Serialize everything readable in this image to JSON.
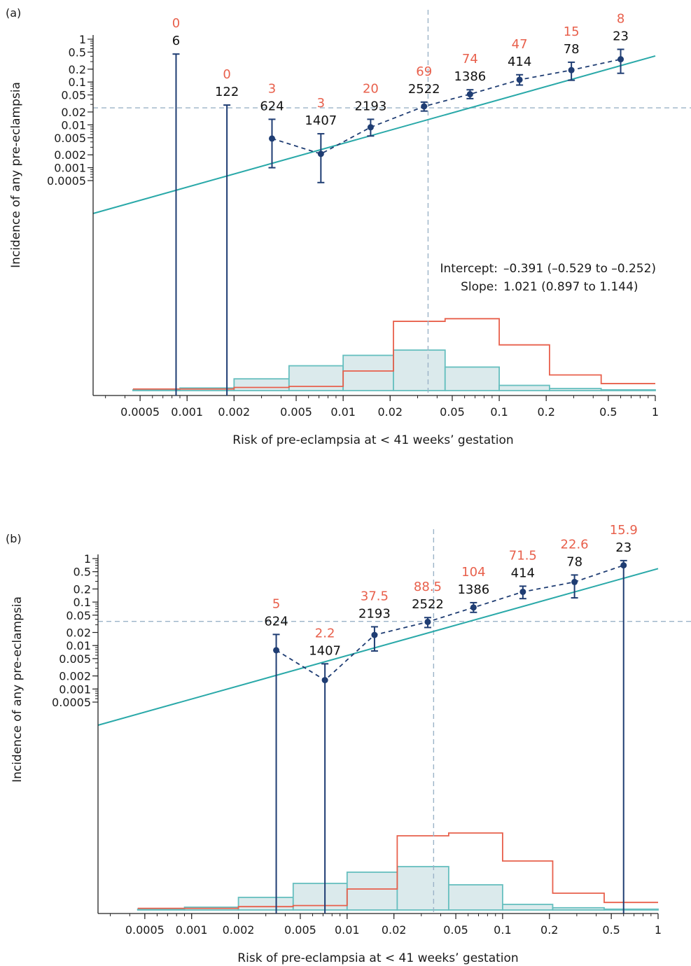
{
  "colors": {
    "calibration_line": "#2aa9a9",
    "observed": "#1f3d73",
    "events_label": "#e8604c",
    "hist_cases": "#e8604c",
    "hist_noncases_stroke": "#66bfbf",
    "hist_noncases_fill": "#dbeaec",
    "reference_line": "#9bb3c7",
    "axis": "#222222"
  },
  "chart_data": [
    {
      "panel_label": "(a)",
      "type": "scatter",
      "xlabel": "Risk of pre-eclampsia at < 41 weeks’ gestation",
      "ylabel": "Incidence of any pre-eclampsia",
      "x_scale": "log",
      "y_scale": "log",
      "xlim": [
        0.00025,
        1
      ],
      "x_ticks": [
        0.0005,
        0.001,
        0.002,
        0.005,
        0.01,
        0.02,
        0.05,
        0.1,
        0.2,
        0.5,
        1
      ],
      "x_tick_labels": [
        "0.0005",
        "0.001",
        "0.002",
        "0.005",
        "0.01",
        "0.02",
        "0.05",
        "0.1",
        "0.2",
        "0.5",
        "1"
      ],
      "y_ticks": [
        0.0005,
        0.001,
        0.002,
        0.005,
        0.01,
        0.02,
        0.05,
        0.1,
        0.2,
        0.5,
        1
      ],
      "y_tick_labels": [
        "0.0005",
        "0.001",
        "0.002",
        "0.005",
        "0.01",
        "0.02",
        "0.05",
        "0.1",
        "0.2",
        "0.5",
        "1"
      ],
      "reference_x": 0.035,
      "reference_y": 0.025,
      "calibration_line": {
        "intercept_log10": -0.391,
        "slope": 1.021
      },
      "groups": [
        {
          "x": 0.00085,
          "y": null,
          "lower": null,
          "upper": 0.45,
          "n": "6",
          "events": "0"
        },
        {
          "x": 0.0018,
          "y": null,
          "lower": null,
          "upper": 0.029,
          "n": "122",
          "events": "0"
        },
        {
          "x": 0.0035,
          "y": 0.0048,
          "lower": 0.001,
          "upper": 0.0135,
          "n": "624",
          "events": "3"
        },
        {
          "x": 0.0072,
          "y": 0.0021,
          "lower": 0.00045,
          "upper": 0.0062,
          "n": "1407",
          "events": "3"
        },
        {
          "x": 0.015,
          "y": 0.0088,
          "lower": 0.0055,
          "upper": 0.0135,
          "n": "2193",
          "events": "20"
        },
        {
          "x": 0.033,
          "y": 0.027,
          "lower": 0.021,
          "upper": 0.034,
          "n": "2522",
          "events": "69"
        },
        {
          "x": 0.065,
          "y": 0.052,
          "lower": 0.041,
          "upper": 0.066,
          "n": "1386",
          "events": "74"
        },
        {
          "x": 0.135,
          "y": 0.113,
          "lower": 0.085,
          "upper": 0.148,
          "n": "414",
          "events": "47"
        },
        {
          "x": 0.29,
          "y": 0.19,
          "lower": 0.11,
          "upper": 0.29,
          "n": "78",
          "events": "15"
        },
        {
          "x": 0.6,
          "y": 0.34,
          "lower": 0.16,
          "upper": 0.58,
          "n": "23",
          "events": "8"
        }
      ],
      "histogram_bins": [
        0.00045,
        0.0009,
        0.002,
        0.0045,
        0.01,
        0.021,
        0.045,
        0.1,
        0.21,
        0.45,
        1
      ],
      "histogram_noncases": [
        0.003,
        0.01,
        0.045,
        0.095,
        0.135,
        0.155,
        0.09,
        0.02,
        0.008,
        0.003
      ],
      "histogram_cases": [
        0.006,
        0.006,
        0.012,
        0.016,
        0.075,
        0.265,
        0.275,
        0.175,
        0.06,
        0.027
      ],
      "annotations": {
        "intercept_label": "Intercept:",
        "intercept_value": "–0.391 (–0.529 to –0.252)",
        "slope_label": "Slope:",
        "slope_value": "1.021 (0.897 to 1.144)"
      }
    },
    {
      "panel_label": "(b)",
      "type": "scatter",
      "xlabel": "Risk of pre-eclampsia at < 41 weeks’ gestation",
      "ylabel": "Incidence of any pre-eclampsia",
      "x_scale": "log",
      "y_scale": "log",
      "xlim": [
        0.00025,
        1
      ],
      "x_ticks": [
        0.0005,
        0.001,
        0.002,
        0.005,
        0.01,
        0.02,
        0.05,
        0.1,
        0.2,
        0.5,
        1
      ],
      "x_tick_labels": [
        "0.0005",
        "0.001",
        "0.002",
        "0.005",
        "0.01",
        "0.02",
        "0.05",
        "0.1",
        "0.2",
        "0.5",
        "1"
      ],
      "y_ticks": [
        0.0005,
        0.001,
        0.002,
        0.005,
        0.01,
        0.02,
        0.05,
        0.1,
        0.2,
        0.5,
        1
      ],
      "y_tick_labels": [
        "0.0005",
        "0.001",
        "0.002",
        "0.005",
        "0.01",
        "0.02",
        "0.05",
        "0.1",
        "0.2",
        "0.5",
        "1"
      ],
      "reference_x": 0.036,
      "reference_y": 0.036,
      "calibration_line": {
        "intercept_log10": -0.23,
        "slope": 1.0
      },
      "groups": [
        {
          "x": 0.0035,
          "y": 0.0078,
          "lower": null,
          "upper": 0.018,
          "n": "624",
          "events": "5"
        },
        {
          "x": 0.0072,
          "y": 0.0016,
          "lower": null,
          "upper": 0.0038,
          "n": "1407",
          "events": "2.2"
        },
        {
          "x": 0.015,
          "y": 0.0175,
          "lower": 0.0075,
          "upper": 0.027,
          "n": "2193",
          "events": "37.5"
        },
        {
          "x": 0.033,
          "y": 0.035,
          "lower": 0.026,
          "upper": 0.044,
          "n": "2522",
          "events": "88.5"
        },
        {
          "x": 0.065,
          "y": 0.075,
          "lower": 0.058,
          "upper": 0.097,
          "n": "1386",
          "events": "104"
        },
        {
          "x": 0.135,
          "y": 0.172,
          "lower": 0.12,
          "upper": 0.232,
          "n": "414",
          "events": "71.5"
        },
        {
          "x": 0.29,
          "y": 0.29,
          "lower": 0.125,
          "upper": 0.42,
          "n": "78",
          "events": "22.6"
        },
        {
          "x": 0.6,
          "y": 0.7,
          "lower": null,
          "upper": 0.9,
          "n": "23",
          "events": "15.9"
        }
      ],
      "histogram_bins": [
        0.00045,
        0.0009,
        0.002,
        0.0045,
        0.01,
        0.021,
        0.045,
        0.1,
        0.21,
        0.45,
        1
      ],
      "histogram_noncases": [
        0.003,
        0.01,
        0.045,
        0.095,
        0.135,
        0.155,
        0.09,
        0.02,
        0.008,
        0.003
      ],
      "histogram_cases": [
        0.006,
        0.006,
        0.012,
        0.016,
        0.075,
        0.265,
        0.275,
        0.175,
        0.06,
        0.027
      ]
    }
  ]
}
